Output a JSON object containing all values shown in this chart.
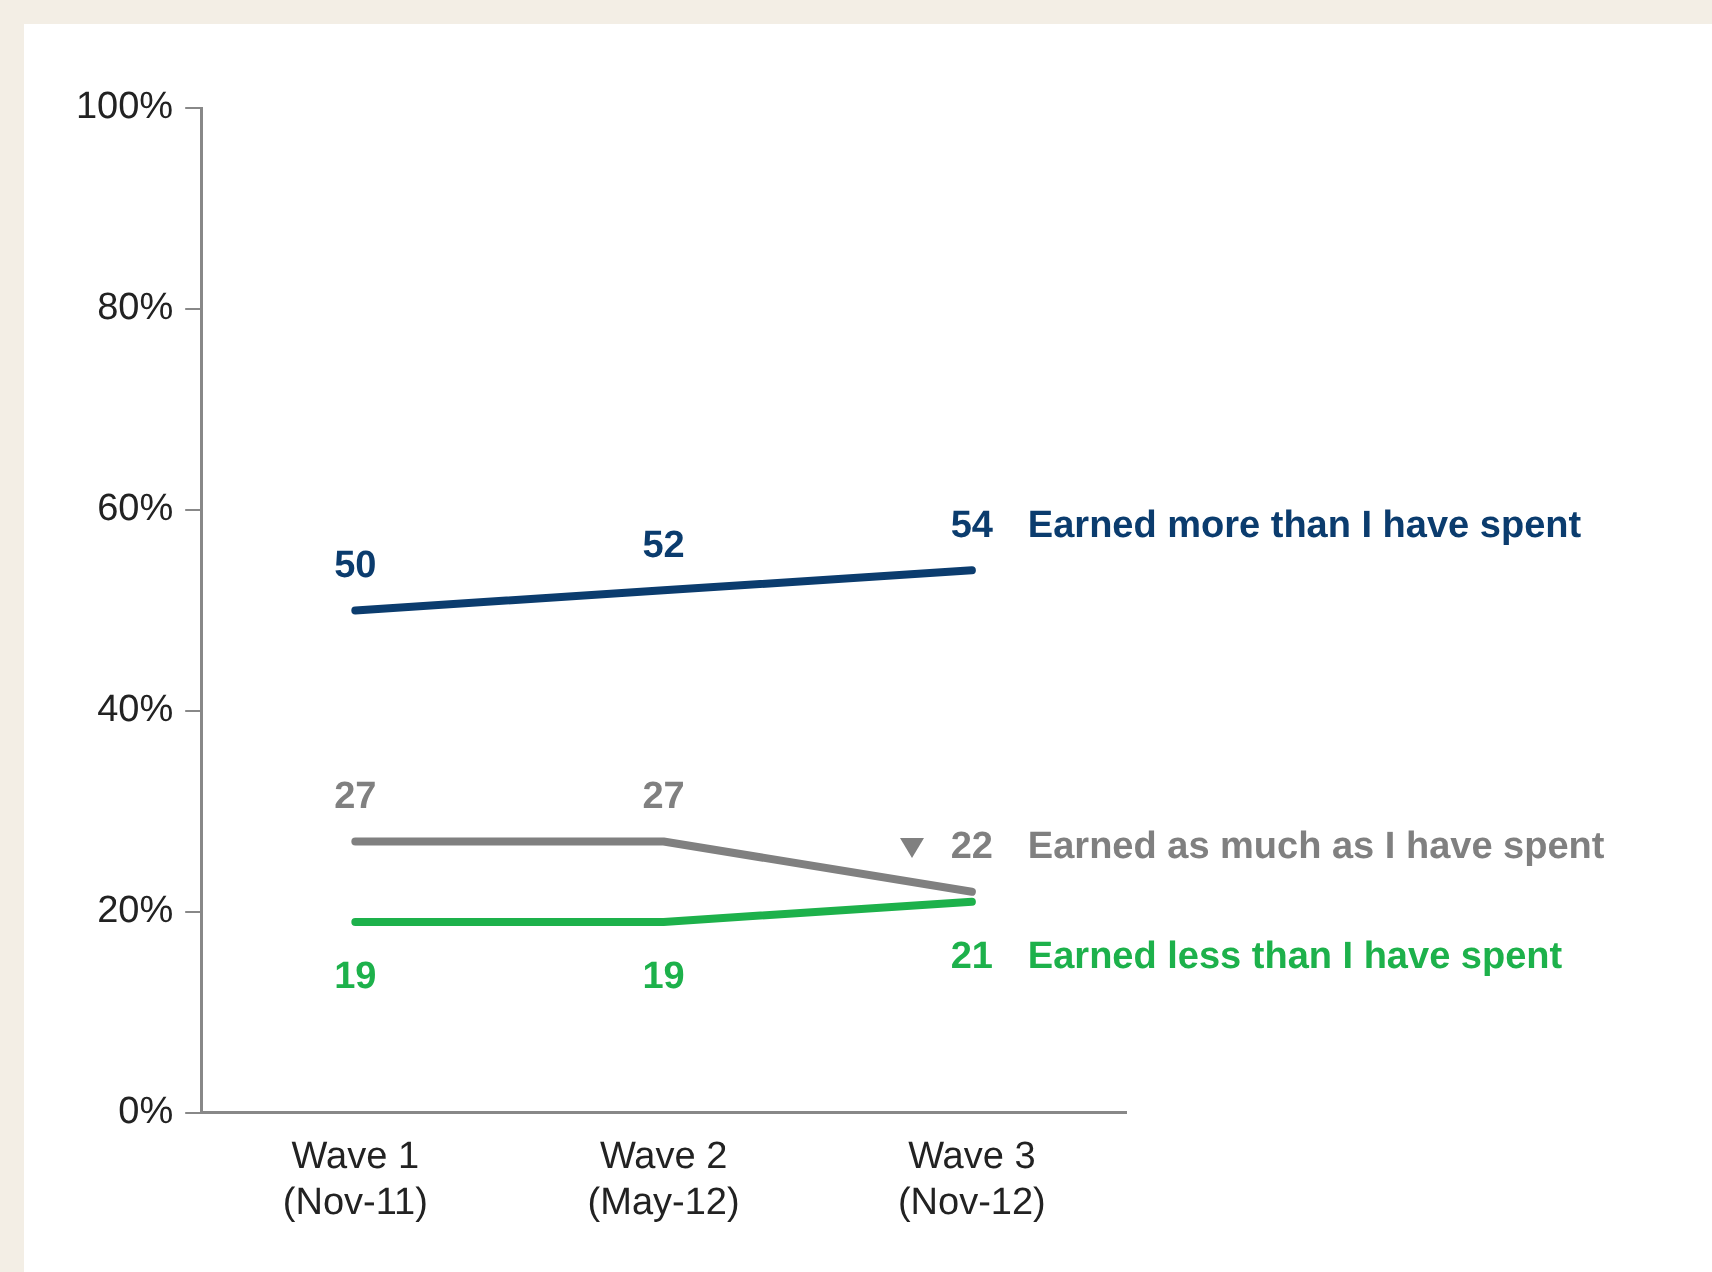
{
  "chart_data": {
    "type": "line",
    "categories": [
      "Wave 1 (Nov-11)",
      "Wave 2 (May-12)",
      "Wave 3 (Nov-12)"
    ],
    "series": [
      {
        "name": "Earned more than I have spent",
        "color": "#0b3c6e",
        "values": [
          50,
          52,
          54
        ]
      },
      {
        "name": "Earned as much as I have spent",
        "color": "#808080",
        "values": [
          27,
          27,
          22
        ]
      },
      {
        "name": "Earned less than I have spent",
        "color": "#1db14b",
        "values": [
          19,
          19,
          21
        ]
      }
    ],
    "ylim": [
      0,
      100
    ],
    "yticks": [
      {
        "value": 0,
        "label": "0%"
      },
      {
        "value": 20,
        "label": "20%"
      },
      {
        "value": 40,
        "label": "40%"
      },
      {
        "value": 60,
        "label": "60%"
      },
      {
        "value": 80,
        "label": "80%"
      },
      {
        "value": 100,
        "label": "100%"
      }
    ],
    "grid": false,
    "legend": false,
    "marker": "none",
    "line_style": "solid",
    "data_labels": true
  }
}
